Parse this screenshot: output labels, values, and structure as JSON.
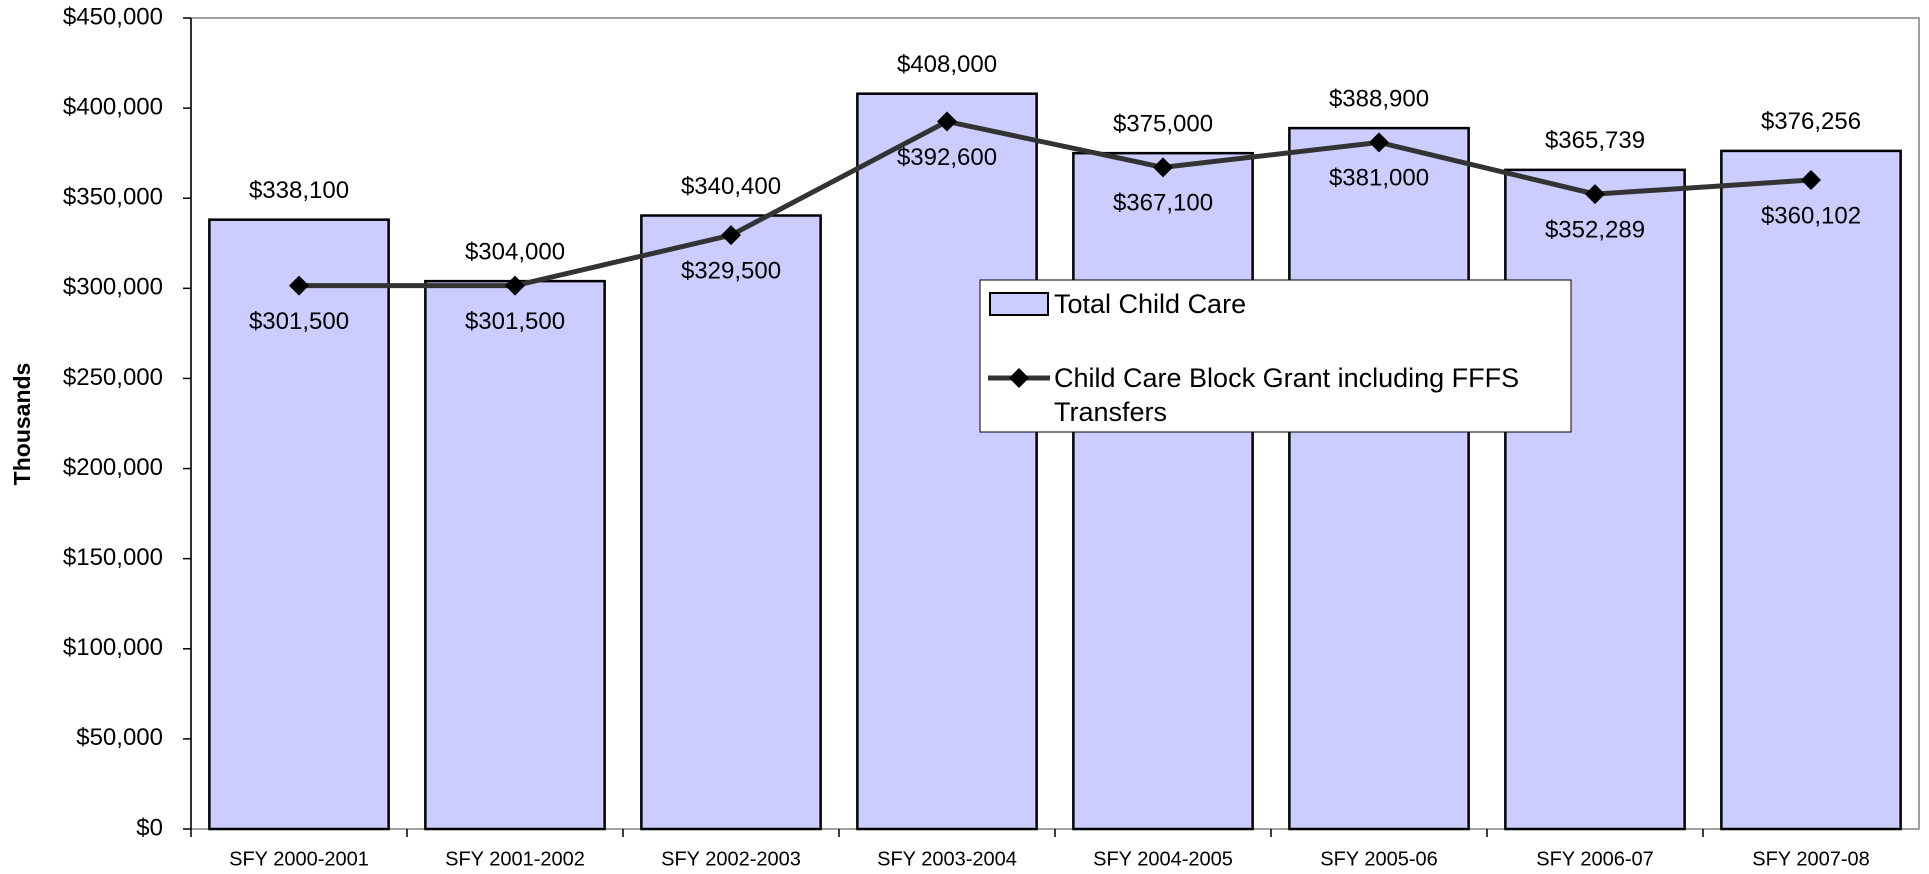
{
  "chart_data": {
    "type": "bar",
    "categories": [
      "SFY 2000-2001",
      "SFY 2001-2002",
      "SFY 2002-2003",
      "SFY 2003-2004",
      "SFY 2004-2005",
      "SFY 2005-06",
      "SFY 2006-07",
      "SFY 2007-08"
    ],
    "series": [
      {
        "name": "Total Child Care",
        "type": "bar",
        "color": "#ccccff",
        "values": [
          338100,
          304000,
          340400,
          408000,
          375000,
          388900,
          365739,
          376256
        ],
        "value_labels": [
          "$338,100",
          "$304,000",
          "$340,400",
          "$408,000",
          "$375,000",
          "$388,900",
          "$365,739",
          "$376,256"
        ]
      },
      {
        "name": "Child Care Block Grant including FFFS Transfers",
        "type": "line",
        "color": "#333333",
        "values": [
          301500,
          301500,
          329500,
          392600,
          367100,
          381000,
          352289,
          360102
        ],
        "value_labels": [
          "$301,500",
          "$301,500",
          "$329,500",
          "$392,600",
          "$367,100",
          "$381,000",
          "$352,289",
          "$360,102"
        ]
      }
    ],
    "y_label": "Thousands",
    "ylim": [
      0,
      450000
    ],
    "yticks": [
      {
        "value": 0,
        "label": "$0"
      },
      {
        "value": 50000,
        "label": "$50,000"
      },
      {
        "value": 100000,
        "label": "$100,000"
      },
      {
        "value": 150000,
        "label": "$150,000"
      },
      {
        "value": 200000,
        "label": "$200,000"
      },
      {
        "value": 250000,
        "label": "$250,000"
      },
      {
        "value": 300000,
        "label": "$300,000"
      },
      {
        "value": 350000,
        "label": "$350,000"
      },
      {
        "value": 400000,
        "label": "$400,000"
      },
      {
        "value": 450000,
        "label": "$450,000"
      }
    ],
    "legend": "center"
  }
}
